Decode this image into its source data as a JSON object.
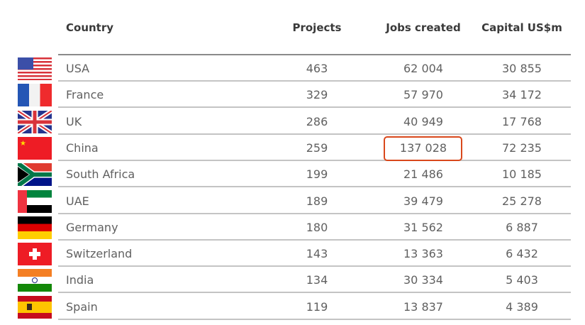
{
  "headers": {
    "country": "Country",
    "projects": "Projects",
    "jobs": "Jobs created",
    "capital": "Capital US$m"
  },
  "highlight_color": "#d9481c",
  "highlighted_cell": {
    "row": "China",
    "column": "Jobs created"
  },
  "rows": [
    {
      "flag": "usa-flag-icon",
      "country": "USA",
      "projects": "463",
      "jobs": "62 004",
      "capital": "30 855"
    },
    {
      "flag": "france-flag-icon",
      "country": "France",
      "projects": "329",
      "jobs": "57 970",
      "capital": "34 172"
    },
    {
      "flag": "uk-flag-icon",
      "country": "UK",
      "projects": "286",
      "jobs": "40 949",
      "capital": "17 768"
    },
    {
      "flag": "china-flag-icon",
      "country": "China",
      "projects": "259",
      "jobs": "137 028",
      "capital": "72 235"
    },
    {
      "flag": "south-africa-flag-icon",
      "country": "South Africa",
      "projects": "199",
      "jobs": "21 486",
      "capital": "10 185"
    },
    {
      "flag": "uae-flag-icon",
      "country": "UAE",
      "projects": "189",
      "jobs": "39 479",
      "capital": "25 278"
    },
    {
      "flag": "germany-flag-icon",
      "country": "Germany",
      "projects": "180",
      "jobs": "31 562",
      "capital": "6 887"
    },
    {
      "flag": "switzerland-flag-icon",
      "country": "Switzerland",
      "projects": "143",
      "jobs": "13 363",
      "capital": "6 432"
    },
    {
      "flag": "india-flag-icon",
      "country": "India",
      "projects": "134",
      "jobs": "30 334",
      "capital": "5 403"
    },
    {
      "flag": "spain-flag-icon",
      "country": "Spain",
      "projects": "119",
      "jobs": "13 837",
      "capital": "4 389"
    }
  ]
}
